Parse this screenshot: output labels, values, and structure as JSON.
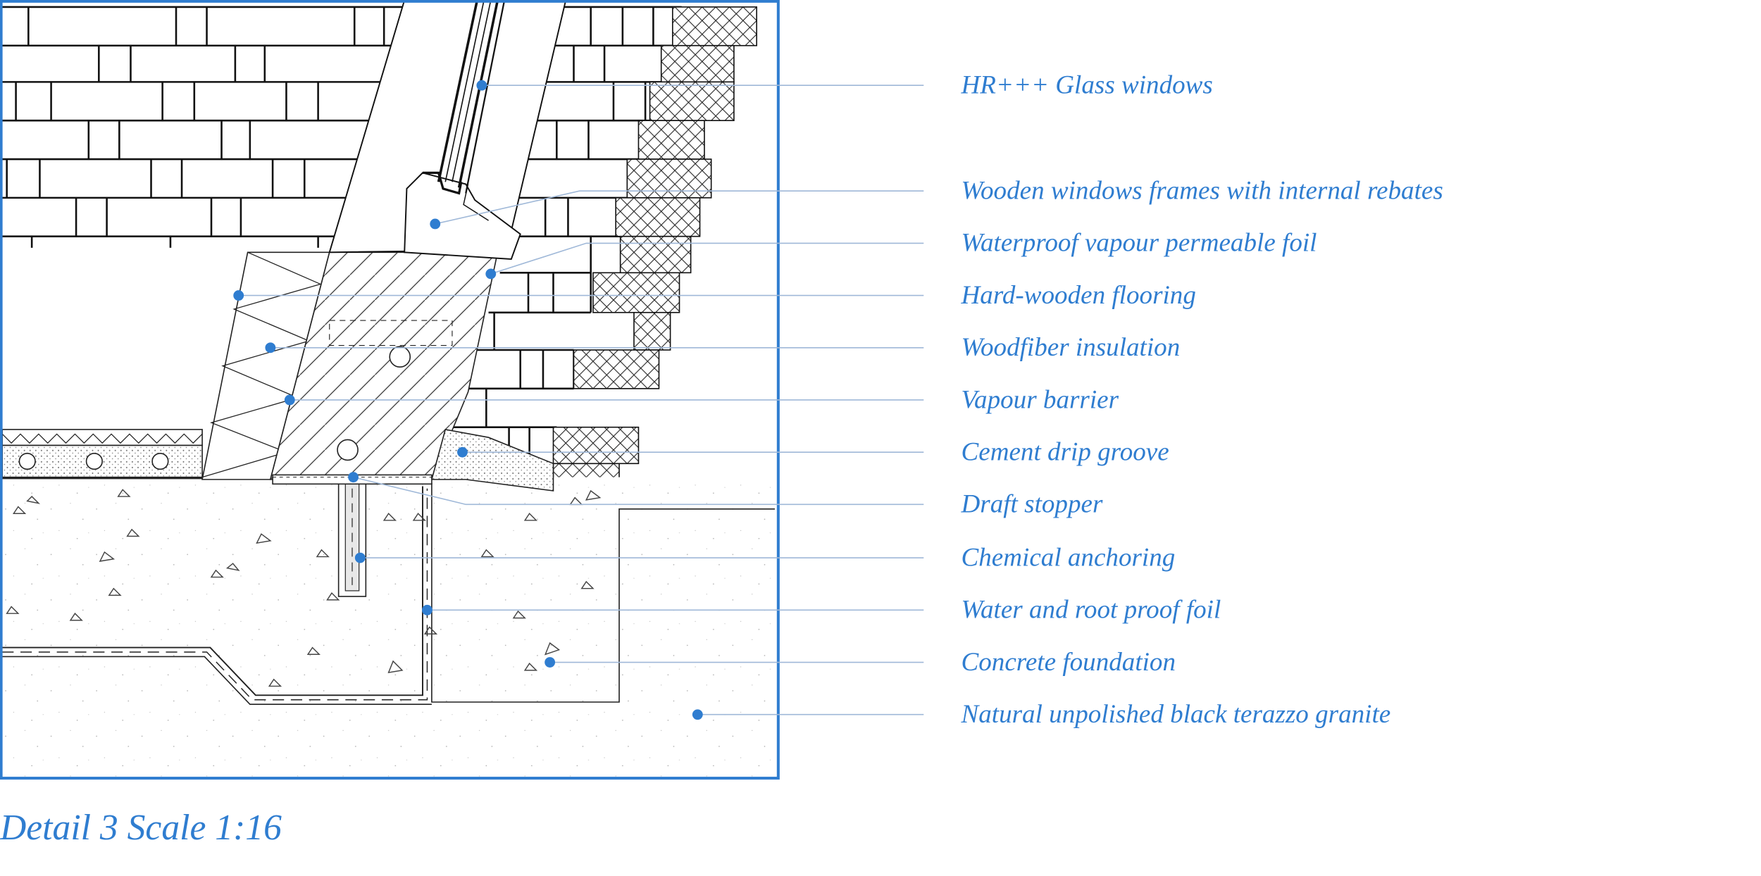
{
  "colors": {
    "accent": "#2f7dd0",
    "leader": "#9fb8d8",
    "ink": "#111111"
  },
  "callouts": [
    {
      "key": "glass",
      "label": "HR+++ Glass windows"
    },
    {
      "key": "frames",
      "label": "Wooden windows frames with internal rebates"
    },
    {
      "key": "foil",
      "label": "Waterproof  vapour permeable foil"
    },
    {
      "key": "flooring",
      "label": "Hard-wooden flooring"
    },
    {
      "key": "insulation",
      "label": "Woodfiber insulation"
    },
    {
      "key": "vapour",
      "label": "Vapour barrier"
    },
    {
      "key": "drip",
      "label": "Cement drip groove"
    },
    {
      "key": "draft",
      "label": "Draft stopper"
    },
    {
      "key": "anchor",
      "label": "Chemical anchoring"
    },
    {
      "key": "rootfoil",
      "label": "Water and root proof  foil"
    },
    {
      "key": "foundation",
      "label": "Concrete foundation"
    },
    {
      "key": "granite",
      "label": "Natural unpolished black terazzo granite"
    }
  ],
  "caption": "Detail 3 Scale 1:16"
}
